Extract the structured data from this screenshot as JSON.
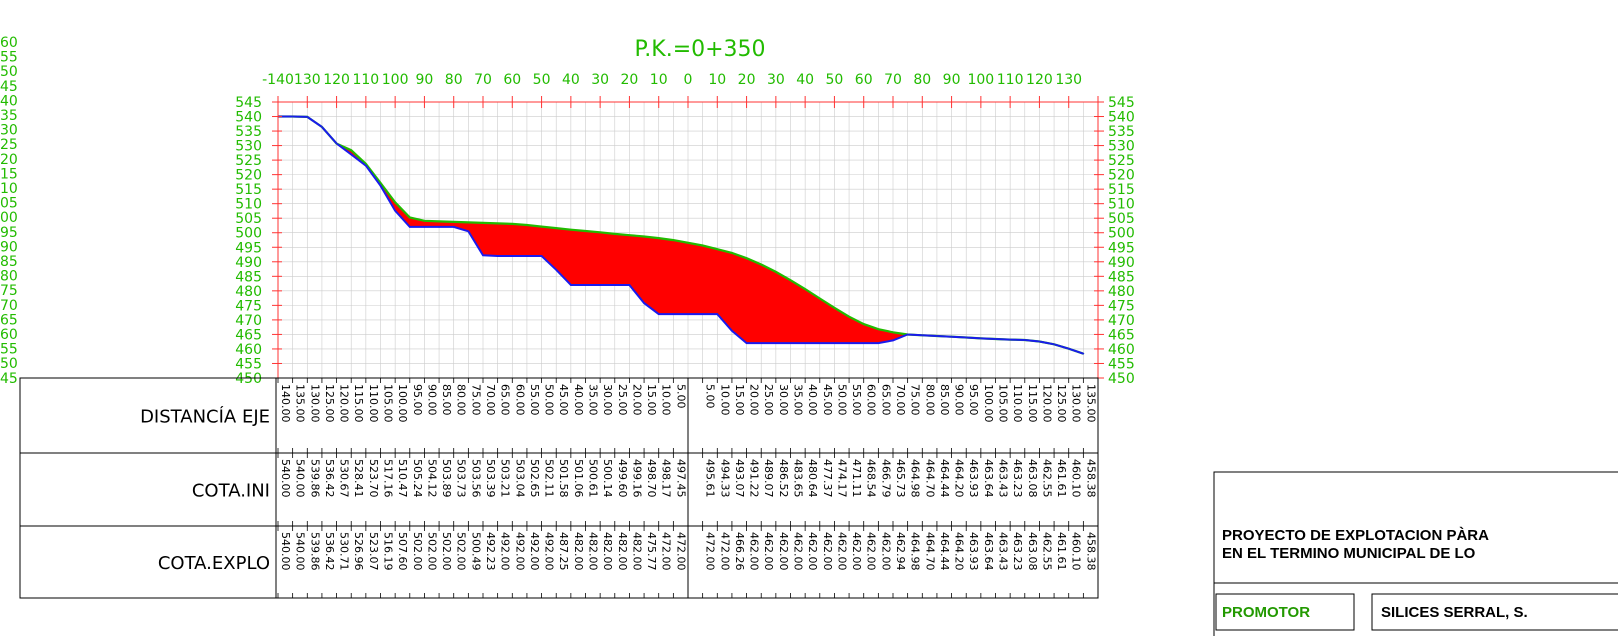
{
  "title": "P.K.=0+350",
  "left_edge_labels": [
    "60",
    "55",
    "50",
    "45",
    "40",
    "35",
    "30",
    "25",
    "20",
    "15",
    "10",
    "05",
    "00",
    "95",
    "90",
    "85",
    "80",
    "75",
    "70",
    "65",
    "60",
    "55",
    "50",
    "45"
  ],
  "chart_data": {
    "type": "area",
    "xlim": [
      -140,
      140
    ],
    "ylim": [
      450,
      545
    ],
    "x_ticks": [
      "-140",
      "130",
      "120",
      "110",
      "100",
      "90",
      "80",
      "70",
      "60",
      "50",
      "40",
      "30",
      "20",
      "10",
      "0",
      "10",
      "20",
      "30",
      "40",
      "50",
      "60",
      "70",
      "80",
      "90",
      "100",
      "110",
      "120",
      "130"
    ],
    "y_ticks": [
      "545",
      "540",
      "535",
      "530",
      "525",
      "520",
      "515",
      "510",
      "505",
      "500",
      "495",
      "490",
      "485",
      "480",
      "475",
      "470",
      "465",
      "460",
      "455",
      "450"
    ],
    "colors": {
      "terrain": "#22bb00",
      "excavation": "#1a1aee",
      "fill": "#ff0000",
      "axis": "#ff3333",
      "grid": "#cccccc",
      "label": "#22bb00"
    },
    "series": [
      {
        "name": "COTA.INI",
        "x": [
          -140,
          -135,
          -130,
          -125,
          -120,
          -115,
          -110,
          -105,
          -100,
          -95,
          -90,
          -85,
          -80,
          -75,
          -70,
          -65,
          -60,
          -55,
          -50,
          -45,
          -40,
          -35,
          -30,
          -25,
          -20,
          -15,
          -10,
          -5,
          5,
          10,
          15,
          20,
          25,
          30,
          35,
          40,
          45,
          50,
          55,
          60,
          65,
          70,
          75,
          80,
          85,
          90,
          95,
          100,
          105,
          110,
          115,
          120,
          125,
          130,
          135
        ],
        "y": [
          540.0,
          540.0,
          539.86,
          536.42,
          530.67,
          528.41,
          523.7,
          517.16,
          510.47,
          505.24,
          504.12,
          503.89,
          503.73,
          503.56,
          503.39,
          503.21,
          503.04,
          502.65,
          502.11,
          501.58,
          501.06,
          500.61,
          500.14,
          499.6,
          499.16,
          498.7,
          498.17,
          497.45,
          495.61,
          494.33,
          493.07,
          491.22,
          489.07,
          486.52,
          483.65,
          480.64,
          477.37,
          474.17,
          471.11,
          468.54,
          466.79,
          465.73,
          464.98,
          464.7,
          464.44,
          464.2,
          463.93,
          463.64,
          463.43,
          463.23,
          463.08,
          462.55,
          461.61,
          460.1,
          458.38
        ]
      },
      {
        "name": "COTA.EXPLO",
        "x": [
          -140,
          -135,
          -130,
          -125,
          -120,
          -115,
          -110,
          -105,
          -100,
          -95,
          -90,
          -85,
          -80,
          -75,
          -70,
          -65,
          -60,
          -55,
          -50,
          -45,
          -40,
          -35,
          -30,
          -25,
          -20,
          -15,
          -10,
          -5,
          5,
          10,
          15,
          20,
          25,
          30,
          35,
          40,
          45,
          50,
          55,
          60,
          65,
          70,
          75,
          80,
          85,
          90,
          95,
          100,
          105,
          110,
          115,
          120,
          125,
          130,
          135
        ],
        "y": [
          540.0,
          540.0,
          539.86,
          536.42,
          530.71,
          526.96,
          523.07,
          516.19,
          507.6,
          502.0,
          502.0,
          502.0,
          502.0,
          500.49,
          492.23,
          492.0,
          492.0,
          492.0,
          492.0,
          487.25,
          482.0,
          482.0,
          482.0,
          482.0,
          482.0,
          475.77,
          472.0,
          472.0,
          472.0,
          472.0,
          466.26,
          462.0,
          462.0,
          462.0,
          462.0,
          462.0,
          462.0,
          462.0,
          462.0,
          462.0,
          462.0,
          462.94,
          464.98,
          464.7,
          464.44,
          464.2,
          463.93,
          463.64,
          463.43,
          463.23,
          463.08,
          462.55,
          461.61,
          460.1,
          458.38
        ]
      }
    ]
  },
  "table": {
    "rows": [
      {
        "label": "DISTANCÍA EJE",
        "left": [
          "140.00",
          "135.00",
          "130.00",
          "125.00",
          "120.00",
          "115.00",
          "110.00",
          "105.00",
          "100.00",
          "95.00",
          "90.00",
          "85.00",
          "80.00",
          "75.00",
          "70.00",
          "65.00",
          "60.00",
          "55.00",
          "50.00",
          "45.00",
          "40.00",
          "35.00",
          "30.00",
          "25.00",
          "20.00",
          "15.00",
          "10.00",
          "5.00"
        ],
        "right": [
          "5.00",
          "10.00",
          "15.00",
          "20.00",
          "25.00",
          "30.00",
          "35.00",
          "40.00",
          "45.00",
          "50.00",
          "55.00",
          "60.00",
          "65.00",
          "70.00",
          "75.00",
          "80.00",
          "85.00",
          "90.00",
          "95.00",
          "100.00",
          "105.00",
          "110.00",
          "115.00",
          "120.00",
          "125.00",
          "130.00",
          "135.00"
        ]
      },
      {
        "label": "COTA.INI",
        "left": [
          "540.00",
          "540.00",
          "539.86",
          "536.42",
          "530.67",
          "528.41",
          "523.70",
          "517.16",
          "510.47",
          "505.24",
          "504.12",
          "503.89",
          "503.73",
          "503.56",
          "503.39",
          "503.21",
          "503.04",
          "502.65",
          "502.11",
          "501.58",
          "501.06",
          "500.61",
          "500.14",
          "499.60",
          "499.16",
          "498.70",
          "498.17",
          "497.45"
        ],
        "right": [
          "495.61",
          "494.33",
          "493.07",
          "491.22",
          "489.07",
          "486.52",
          "483.65",
          "480.64",
          "477.37",
          "474.17",
          "471.11",
          "468.54",
          "466.79",
          "465.73",
          "464.98",
          "464.70",
          "464.44",
          "464.20",
          "463.93",
          "463.64",
          "463.43",
          "463.23",
          "463.08",
          "462.55",
          "461.61",
          "460.10",
          "458.38"
        ]
      },
      {
        "label": "COTA.EXPLO",
        "left": [
          "540.00",
          "540.00",
          "539.86",
          "536.42",
          "530.71",
          "526.96",
          "523.07",
          "516.19",
          "507.60",
          "502.00",
          "502.00",
          "502.00",
          "502.00",
          "500.49",
          "492.23",
          "492.00",
          "492.00",
          "492.00",
          "492.00",
          "487.25",
          "482.00",
          "482.00",
          "482.00",
          "482.00",
          "482.00",
          "475.77",
          "472.00",
          "472.00"
        ],
        "right": [
          "472.00",
          "472.00",
          "466.26",
          "462.00",
          "462.00",
          "462.00",
          "462.00",
          "462.00",
          "462.00",
          "462.00",
          "462.00",
          "462.00",
          "462.00",
          "462.94",
          "464.98",
          "464.70",
          "464.44",
          "464.20",
          "463.93",
          "463.64",
          "463.43",
          "463.23",
          "463.08",
          "462.55",
          "461.61",
          "460.10",
          "458.38"
        ]
      }
    ]
  },
  "title_block": {
    "project_line1": "PROYECTO DE EXPLOTACION PÀRA",
    "project_line2": "EN EL TERMINO MUNICIPAL DE LO",
    "promotor_label": "PROMOTOR",
    "promotor_value": "SILICES SERRAL, S."
  }
}
